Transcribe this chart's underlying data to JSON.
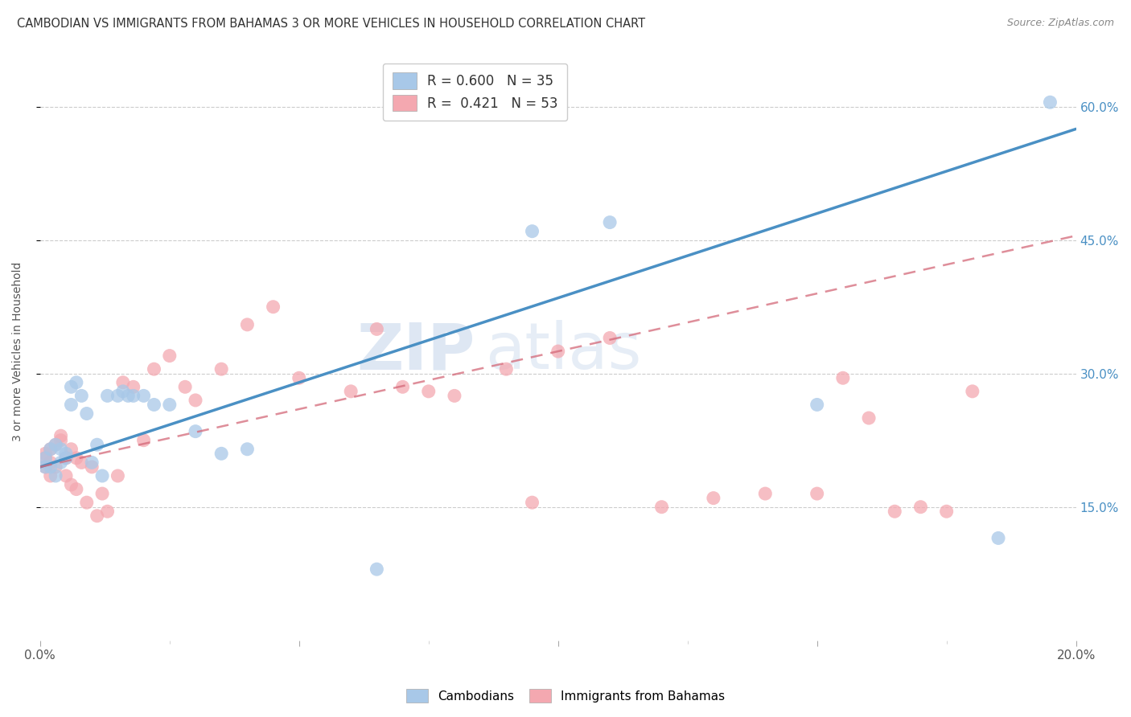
{
  "title": "CAMBODIAN VS IMMIGRANTS FROM BAHAMAS 3 OR MORE VEHICLES IN HOUSEHOLD CORRELATION CHART",
  "source": "Source: ZipAtlas.com",
  "ylabel": "3 or more Vehicles in Household",
  "ytick_labels": [
    "15.0%",
    "30.0%",
    "45.0%",
    "60.0%"
  ],
  "ytick_values": [
    0.15,
    0.3,
    0.45,
    0.6
  ],
  "xmin": 0.0,
  "xmax": 0.2,
  "ymin": 0.0,
  "ymax": 0.65,
  "blue_color": "#a8c8e8",
  "pink_color": "#f4a8b0",
  "blue_line_color": "#4a90c4",
  "pink_line_color": "#d46878",
  "watermark_part1": "ZIP",
  "watermark_part2": "atlas",
  "blue_line_y0": 0.195,
  "blue_line_y1": 0.575,
  "pink_line_y0": 0.195,
  "pink_line_y1": 0.455,
  "cambodian_x": [
    0.001,
    0.001,
    0.002,
    0.002,
    0.003,
    0.003,
    0.004,
    0.004,
    0.005,
    0.005,
    0.006,
    0.006,
    0.007,
    0.008,
    0.009,
    0.01,
    0.011,
    0.012,
    0.013,
    0.015,
    0.016,
    0.017,
    0.018,
    0.02,
    0.022,
    0.025,
    0.03,
    0.035,
    0.04,
    0.065,
    0.095,
    0.11,
    0.15,
    0.185,
    0.195
  ],
  "cambodian_y": [
    0.205,
    0.195,
    0.215,
    0.195,
    0.22,
    0.185,
    0.215,
    0.2,
    0.21,
    0.205,
    0.285,
    0.265,
    0.29,
    0.275,
    0.255,
    0.2,
    0.22,
    0.185,
    0.275,
    0.275,
    0.28,
    0.275,
    0.275,
    0.275,
    0.265,
    0.265,
    0.235,
    0.21,
    0.215,
    0.08,
    0.46,
    0.47,
    0.265,
    0.115,
    0.605
  ],
  "bahamas_x": [
    0.001,
    0.001,
    0.001,
    0.002,
    0.002,
    0.002,
    0.003,
    0.003,
    0.004,
    0.004,
    0.005,
    0.005,
    0.006,
    0.006,
    0.007,
    0.007,
    0.008,
    0.009,
    0.01,
    0.011,
    0.012,
    0.013,
    0.015,
    0.016,
    0.018,
    0.02,
    0.022,
    0.025,
    0.028,
    0.03,
    0.035,
    0.04,
    0.045,
    0.05,
    0.06,
    0.065,
    0.07,
    0.075,
    0.08,
    0.09,
    0.095,
    0.1,
    0.11,
    0.12,
    0.13,
    0.14,
    0.15,
    0.155,
    0.16,
    0.165,
    0.17,
    0.175,
    0.18
  ],
  "bahamas_y": [
    0.21,
    0.205,
    0.195,
    0.215,
    0.2,
    0.185,
    0.22,
    0.195,
    0.225,
    0.23,
    0.205,
    0.185,
    0.215,
    0.175,
    0.17,
    0.205,
    0.2,
    0.155,
    0.195,
    0.14,
    0.165,
    0.145,
    0.185,
    0.29,
    0.285,
    0.225,
    0.305,
    0.32,
    0.285,
    0.27,
    0.305,
    0.355,
    0.375,
    0.295,
    0.28,
    0.35,
    0.285,
    0.28,
    0.275,
    0.305,
    0.155,
    0.325,
    0.34,
    0.15,
    0.16,
    0.165,
    0.165,
    0.295,
    0.25,
    0.145,
    0.15,
    0.145,
    0.28
  ]
}
